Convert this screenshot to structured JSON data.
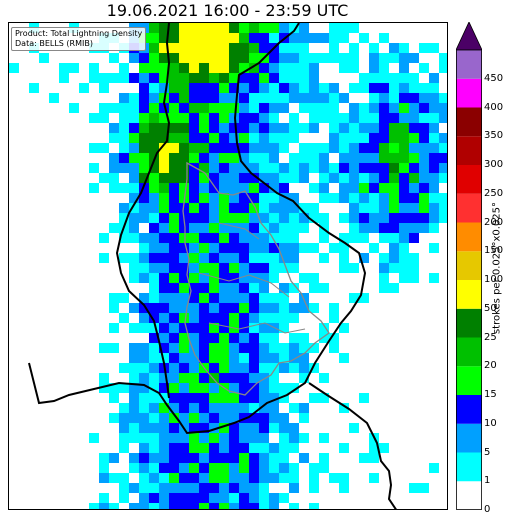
{
  "title": "19.06.2021 16:00 - 23:59 UTC",
  "info": {
    "product_line": "Product: Total Lightning Density",
    "data_line": "Data: BELLS (RMIB)"
  },
  "colorbar": {
    "unit_label": "strokes per 0.025°x0.025°",
    "extend": "max",
    "levels": [
      {
        "label": "0",
        "color": "#ffffff"
      },
      {
        "label": "1",
        "color": "#00ffff"
      },
      {
        "label": "5",
        "color": "#00a0ff"
      },
      {
        "label": "10",
        "color": "#0000ff"
      },
      {
        "label": "15",
        "color": "#00ff00"
      },
      {
        "label": "20",
        "color": "#00c000"
      },
      {
        "label": "25",
        "color": "#008000"
      },
      {
        "label": "50",
        "color": "#ffff00"
      },
      {
        "label": "100",
        "color": "#e6c800"
      },
      {
        "label": "150",
        "color": "#ff8c00"
      },
      {
        "label": "200",
        "color": "#ff3030"
      },
      {
        "label": "250",
        "color": "#e00000"
      },
      {
        "label": "300",
        "color": "#b00000"
      },
      {
        "label": "350",
        "color": "#8b0000"
      },
      {
        "label": "400",
        "color": "#ff00ff"
      },
      {
        "label": "450",
        "color": "#9966cc"
      }
    ],
    "overflow_color": "#4b0066"
  }
}
